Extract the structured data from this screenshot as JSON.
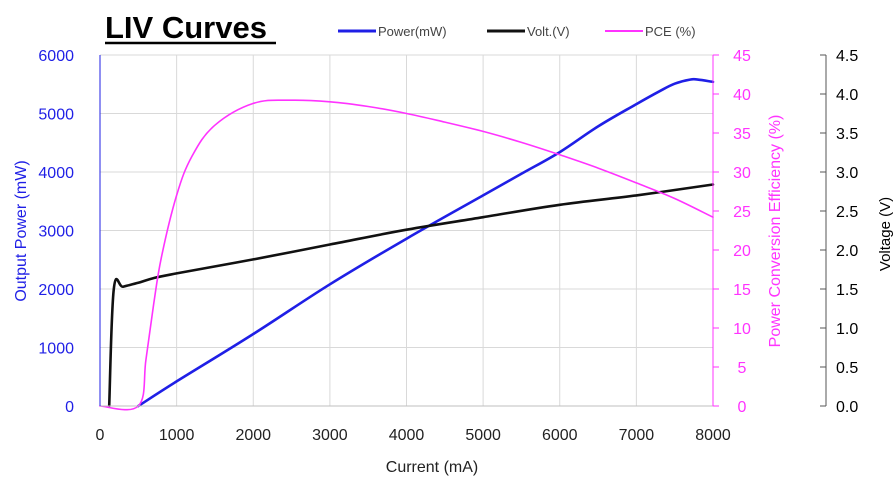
{
  "chart_data": {
    "type": "line",
    "title": "LIV Curves",
    "xlabel": "Current (mA)",
    "x_ticks": [
      "0",
      "1000",
      "2000",
      "3000",
      "4000",
      "5000",
      "6000",
      "7000",
      "8000"
    ],
    "xlim": [
      0,
      8000
    ],
    "grid": true,
    "legend_position": "top",
    "axes": {
      "power": {
        "label": "Output Power (mW)",
        "ylim": [
          0,
          6000
        ],
        "ticks": [
          "0",
          "1000",
          "2000",
          "3000",
          "4000",
          "5000",
          "6000"
        ],
        "color": "#1f1fe6"
      },
      "pce": {
        "label": "Power Conversion Efficiency (%)",
        "ylim": [
          0,
          45
        ],
        "ticks": [
          "0",
          "5",
          "10",
          "15",
          "20",
          "25",
          "30",
          "35",
          "40",
          "45"
        ],
        "color": "#ff33ff"
      },
      "voltage": {
        "label": "Voltage (V)",
        "ylim": [
          0,
          4.5
        ],
        "ticks": [
          "0.0",
          "0.5",
          "1.0",
          "1.5",
          "2.0",
          "2.5",
          "3.0",
          "3.5",
          "4.0",
          "4.5"
        ],
        "color": "#000000"
      }
    },
    "series": [
      {
        "name": "Power(mW)",
        "axis": "power",
        "color": "#1f1fe6",
        "x": [
          500,
          1000,
          2000,
          3000,
          4000,
          5000,
          5500,
          6000,
          6500,
          7000,
          7300,
          7500,
          7700,
          7800,
          8000
        ],
        "values": [
          0,
          420,
          1230,
          2080,
          2860,
          3600,
          3970,
          4340,
          4780,
          5160,
          5380,
          5510,
          5580,
          5580,
          5540
        ]
      },
      {
        "name": "Volt.(V)",
        "axis": "voltage",
        "color": "#111111",
        "x": [
          120,
          180,
          300,
          500,
          700,
          1000,
          2000,
          3000,
          4000,
          5000,
          6000,
          7000,
          8000
        ],
        "values": [
          0,
          1.5,
          1.53,
          1.58,
          1.64,
          1.7,
          1.88,
          2.07,
          2.26,
          2.42,
          2.58,
          2.7,
          2.84
        ]
      },
      {
        "name": "PCE (%)",
        "axis": "pce",
        "color": "#ff33ff",
        "x": [
          0,
          500,
          600,
          700,
          800,
          1000,
          1200,
          1500,
          2000,
          2500,
          3000,
          3500,
          4000,
          4500,
          5000,
          5500,
          6000,
          6500,
          7000,
          7500,
          8000
        ],
        "values": [
          0,
          0,
          6,
          13,
          19,
          27,
          32,
          36,
          38.8,
          39.2,
          39.0,
          38.4,
          37.5,
          36.4,
          35.2,
          33.8,
          32.2,
          30.5,
          28.6,
          26.6,
          24.2
        ]
      }
    ]
  }
}
